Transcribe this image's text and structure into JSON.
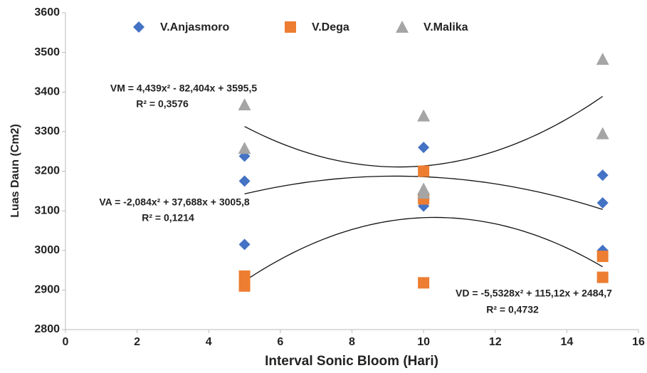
{
  "chart_data": {
    "type": "scatter",
    "x_label": "Interval Sonic Bloom (Hari)",
    "y_label": "Luas Daun (Cm2)",
    "xlim": [
      0,
      16
    ],
    "xticks": [
      0,
      2,
      4,
      6,
      8,
      10,
      12,
      14,
      16
    ],
    "ylim": [
      2800,
      3600
    ],
    "yticks": [
      2800,
      2900,
      3000,
      3100,
      3200,
      3300,
      3400,
      3500,
      3600
    ],
    "grid": false,
    "legend": "top",
    "trendline": "polynomial",
    "series": [
      {
        "name": "V.Anjasmoro",
        "color": "#4472c4",
        "marker": "diamond",
        "x": [
          5,
          5,
          5,
          10,
          10,
          15,
          15,
          15
        ],
        "values": [
          3238,
          3175,
          3015,
          3260,
          3112,
          3190,
          3120,
          3000
        ]
      },
      {
        "name": "V.Dega",
        "color": "#ed7d31",
        "marker": "square",
        "x": [
          5,
          5,
          10,
          10,
          10,
          15,
          15
        ],
        "values": [
          2935,
          2910,
          3200,
          3130,
          2918,
          2985,
          2932
        ]
      },
      {
        "name": "V.Malika",
        "color": "#a5a5a5",
        "marker": "triangle",
        "x": [
          5,
          5,
          10,
          10,
          10,
          15,
          15
        ],
        "values": [
          3368,
          3258,
          3340,
          3155,
          3145,
          3483,
          3295
        ]
      }
    ],
    "annotations": [
      {
        "equation": "VM = 4,439x² - 82,404x + 3595,5",
        "r2": "R² = 0,3576"
      },
      {
        "equation": "VA = -2,084x² + 37,688x + 3005,8",
        "r2": "R² = 0,1214"
      },
      {
        "equation": "VD = -5,5328x² + 115,12x + 2484,7",
        "r2": "R² = 0,4732"
      }
    ]
  }
}
